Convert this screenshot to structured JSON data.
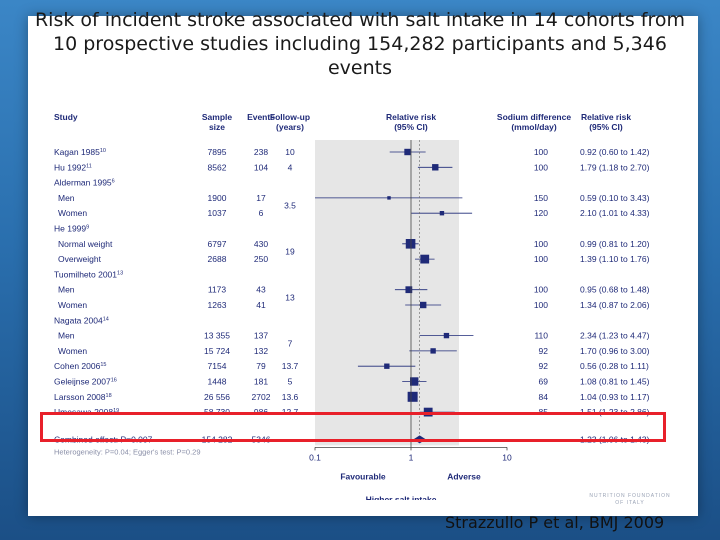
{
  "slide": {
    "title_lines": [
      "Risk of incident stroke associated with salt intake in 14 cohorts from",
      "10 prospective studies including 154,282 participants and 5,346",
      "events"
    ],
    "citation": "Strazzullo P et al, BMJ 2009",
    "logo_lines": [
      "NUTRITION FOUNDATION",
      "OF ITALY"
    ]
  },
  "colors": {
    "marker": "#1f2a78",
    "shade": "#e6e6e6",
    "highlight": "#e8202a",
    "text": "#1f2a78"
  },
  "chart_data": {
    "type": "forest",
    "headers": {
      "study": "Study",
      "size_1": "Sample",
      "size_2": "size",
      "events": "Events",
      "followup_1": "Follow-up",
      "followup_2": "(years)",
      "rr_plot_1": "Relative risk",
      "rr_plot_2": "(95% CI)",
      "sodium_1": "Sodium difference",
      "sodium_2": "(mmol/day)",
      "rr_text_1": "Relative risk",
      "rr_text_2": "(95% CI)"
    },
    "x_scale": "log",
    "xlim": [
      0.1,
      10
    ],
    "ticks": [
      "0.1",
      "1",
      "10"
    ],
    "tick_values": [
      0.1,
      1,
      10
    ],
    "xlabel_left": "Favourable",
    "xlabel_right": "Adverse",
    "xlabel": "Higher salt intake",
    "rows": [
      {
        "label": "Kagan 1985",
        "sup": "10",
        "indent": false,
        "size": "7895",
        "events": "238",
        "follow": "10",
        "sodium": "100",
        "rr": 0.92,
        "lo": 0.6,
        "hi": 1.42,
        "rr_text": "0.92 (0.60 to 1.42)",
        "weight": 0.55
      },
      {
        "label": "Hu 1992",
        "sup": "11",
        "indent": false,
        "size": "8562",
        "events": "104",
        "follow": "4",
        "sodium": "100",
        "rr": 1.79,
        "lo": 1.18,
        "hi": 2.7,
        "rr_text": "1.79 (1.18 to 2.70)",
        "weight": 0.55
      },
      {
        "label": "Alderman 1995",
        "sup": "6",
        "indent": false,
        "header": true
      },
      {
        "label": "Men",
        "indent": true,
        "size": "1900",
        "events": "17",
        "follow": "",
        "sodium": "150",
        "rr": 0.59,
        "lo": 0.1,
        "hi": 3.43,
        "rr_text": "0.59 (0.10 to 3.43)",
        "weight": 0.18
      },
      {
        "label": "Women",
        "indent": true,
        "size": "1037",
        "events": "6",
        "follow": "",
        "sodium": "120",
        "rr": 2.1,
        "lo": 1.01,
        "hi": 4.33,
        "rr_text": "2.10 (1.01 to 4.33)",
        "weight": 0.3
      },
      {
        "label": "He 1999",
        "sup": "9",
        "indent": false,
        "header": true
      },
      {
        "label": "Normal weight",
        "indent": true,
        "size": "6797",
        "events": "430",
        "follow": "",
        "sodium": "100",
        "rr": 0.99,
        "lo": 0.81,
        "hi": 1.2,
        "rr_text": "0.99 (0.81 to 1.20)",
        "weight": 0.95
      },
      {
        "label": "Overweight",
        "indent": true,
        "size": "2688",
        "events": "250",
        "follow": "",
        "sodium": "100",
        "rr": 1.39,
        "lo": 1.1,
        "hi": 1.76,
        "rr_text": "1.39 (1.10 to 1.76)",
        "weight": 0.85
      },
      {
        "label": "Tuomilheto 2001",
        "sup": "13",
        "indent": false,
        "header": true
      },
      {
        "label": "Men",
        "indent": true,
        "size": "1173",
        "events": "43",
        "follow": "",
        "sodium": "100",
        "rr": 0.95,
        "lo": 0.68,
        "hi": 1.48,
        "rr_text": "0.95 (0.68 to 1.48)",
        "weight": 0.6
      },
      {
        "label": "Women",
        "indent": true,
        "size": "1263",
        "events": "41",
        "follow": "",
        "sodium": "100",
        "rr": 1.34,
        "lo": 0.87,
        "hi": 2.06,
        "rr_text": "1.34 (0.87 to 2.06)",
        "weight": 0.55
      },
      {
        "label": "Nagata 2004",
        "sup": "14",
        "indent": false,
        "header": true
      },
      {
        "label": "Men",
        "indent": true,
        "size": "13 355",
        "events": "137",
        "follow": "",
        "sodium": "110",
        "rr": 2.34,
        "lo": 1.23,
        "hi": 4.47,
        "rr_text": "2.34 (1.23 to 4.47)",
        "weight": 0.42
      },
      {
        "label": "Women",
        "indent": true,
        "size": "15 724",
        "events": "132",
        "follow": "",
        "sodium": "92",
        "rr": 1.7,
        "lo": 0.96,
        "hi": 3.0,
        "rr_text": "1.70 (0.96 to 3.00)",
        "weight": 0.42
      },
      {
        "label": "Cohen 2006",
        "sup": "15",
        "indent": false,
        "size": "7154",
        "events": "79",
        "follow": "13.7",
        "sodium": "92",
        "rr": 0.56,
        "lo": 0.28,
        "hi": 1.11,
        "rr_text": "0.56 (0.28 to 1.11)",
        "weight": 0.42
      },
      {
        "label": "Geleijnse 2007",
        "sup": "16",
        "indent": false,
        "size": "1448",
        "events": "181",
        "follow": "5",
        "sodium": "69",
        "rr": 1.08,
        "lo": 0.81,
        "hi": 1.45,
        "rr_text": "1.08 (0.81 to 1.45)",
        "weight": 0.8
      },
      {
        "label": "Larsson 2008",
        "sup": "18",
        "indent": false,
        "size": "26 556",
        "events": "2702",
        "follow": "13.6",
        "sodium": "84",
        "rr": 1.04,
        "lo": 0.93,
        "hi": 1.17,
        "rr_text": "1.04 (0.93 to 1.17)",
        "weight": 1.0
      },
      {
        "label": "Umesawa 2008",
        "sup": "19",
        "indent": false,
        "size": "58 730",
        "events": "986",
        "follow": "12.7",
        "sodium": "85",
        "rr": 1.51,
        "lo": 1.23,
        "hi": 2.86,
        "rr_text": "1.51 (1.23 to 2.86)",
        "weight": 0.85
      }
    ],
    "followup_groups": [
      {
        "value": "3.5",
        "rows": [
          3,
          4
        ]
      },
      {
        "value": "19",
        "rows": [
          6,
          7
        ]
      },
      {
        "value": "13",
        "rows": [
          9,
          10
        ]
      },
      {
        "value": "7",
        "rows": [
          12,
          13
        ]
      }
    ],
    "combined": {
      "label": "Combined effect: P=0.007",
      "size": "154 282",
      "events": "5346",
      "rr": 1.23,
      "lo": 1.06,
      "hi": 1.43,
      "rr_text": "1.23 (1.06 to 1.43)"
    },
    "heterogeneity": "Heterogeneity: P=0.04; Egger's test: P=0.29"
  }
}
